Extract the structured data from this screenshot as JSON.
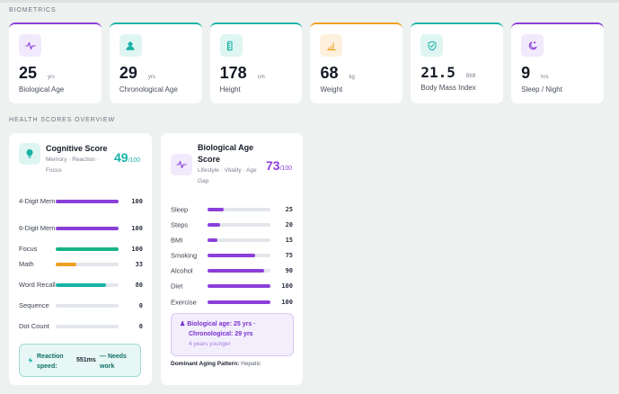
{
  "biometrics": {
    "section_title": "BIOMETRICS",
    "cards": [
      {
        "value": "25",
        "unit": "yrs",
        "label": "Biological Age",
        "icon": "pulse-icon",
        "accent": "#8b3fd9",
        "icon_bg": "#f1e9fc"
      },
      {
        "value": "29",
        "unit": "yrs",
        "label": "Chronological Age",
        "icon": "user-icon",
        "accent": "#17b3a6",
        "icon_bg": "#dff5f2"
      },
      {
        "value": "178",
        "unit": "cm",
        "label": "Height",
        "icon": "ruler-icon",
        "accent": "#17b3a6",
        "icon_bg": "#dff5f2"
      },
      {
        "value": "68",
        "unit": "kg",
        "label": "Weight",
        "icon": "bar-chart-icon",
        "accent": "#f0a020",
        "icon_bg": "#fdf1de"
      },
      {
        "value": "21.5",
        "unit": "BMI",
        "label": "Body Mass Index",
        "icon": "heart-shield-icon",
        "accent": "#17b3a6",
        "icon_bg": "#dff5f2"
      },
      {
        "value": "9",
        "unit": "hrs",
        "label": "Sleep / Night",
        "icon": "moon-icon",
        "accent": "#8b3fd9",
        "icon_bg": "#f1e9fc"
      }
    ]
  },
  "overview": {
    "section_title": "HEALTH SCORES OVERVIEW"
  },
  "cognitive": {
    "title": "Cognitive Score",
    "subtitle": "Memory · Reaction · Focus",
    "score": "49",
    "score_suffix": "/100",
    "color": "#17b3a6",
    "rows": [
      {
        "label": "4-Digit Mem",
        "value": 100,
        "color": "#8b3fd9"
      },
      {
        "label": "6-Digit Mem",
        "value": 100,
        "color": "#8b3fd9"
      },
      {
        "label": "Focus",
        "value": 100,
        "color": "#17b38a"
      },
      {
        "label": "Math",
        "value": 33,
        "color": "#f0a020"
      },
      {
        "label": "Word Recall",
        "value": 80,
        "color": "#17b3a6"
      },
      {
        "label": "Sequence",
        "value": 0,
        "color": "#8b3fd9"
      },
      {
        "label": "Dot Count",
        "value": 0,
        "color": "#8b3fd9"
      }
    ],
    "reaction_label": "Reaction speed:",
    "reaction_value": "551ms",
    "reaction_note": "— Needs work"
  },
  "bioage": {
    "title": "Biological Age Score",
    "subtitle": "Lifestyle · Vitality · Age Gap",
    "score": "73",
    "score_suffix": "/100",
    "color": "#8b3fd9",
    "rows": [
      {
        "label": "Sleep",
        "value": 25
      },
      {
        "label": "Steps",
        "value": 20
      },
      {
        "label": "BMI",
        "value": 15
      },
      {
        "label": "Smoking",
        "value": 75
      },
      {
        "label": "Alcohol",
        "value": 90
      },
      {
        "label": "Diet",
        "value": 100
      },
      {
        "label": "Exercise",
        "value": 100
      }
    ],
    "bio_line1": "Biological age: 25 yrs ·",
    "bio_line2": "Chronological: 29 yrs",
    "bio_line3": "4 years younger",
    "pattern_label": "Dominant Aging Pattern:",
    "pattern_value": "Hepatic"
  }
}
